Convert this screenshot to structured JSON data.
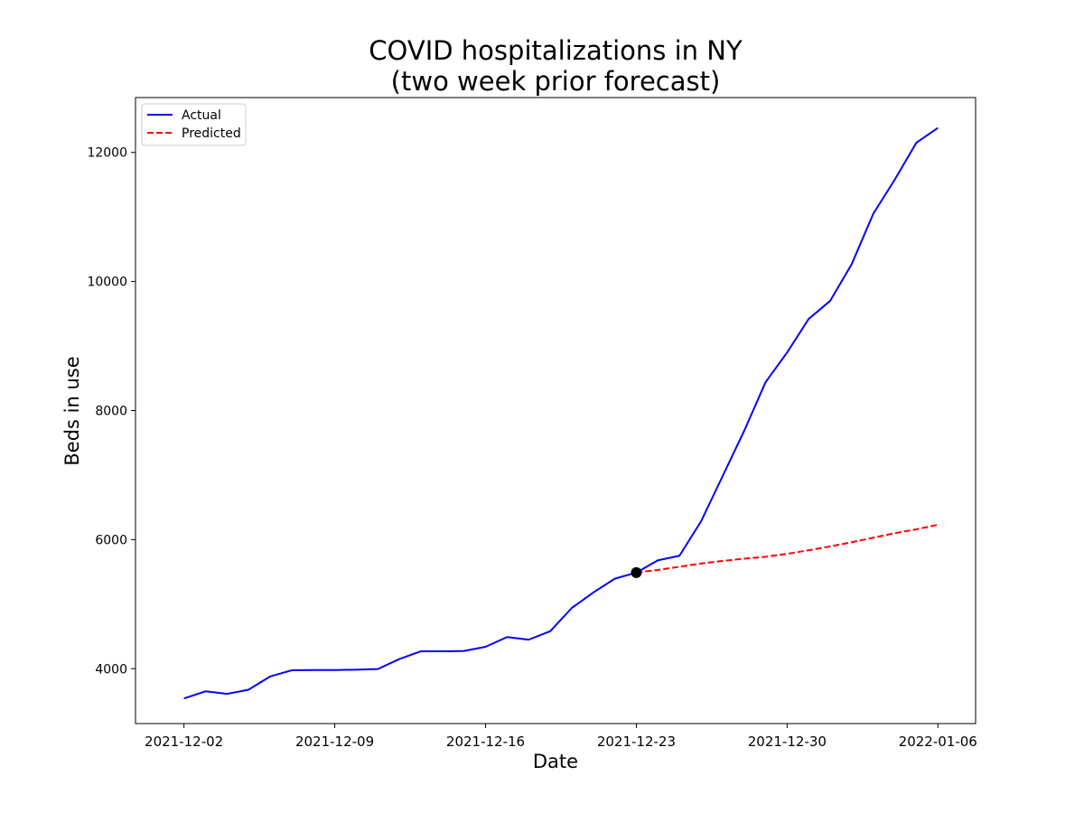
{
  "chart_data": {
    "type": "line",
    "title_line1": "COVID hospitalizations in NY",
    "title_line2": "(two week prior forecast)",
    "xlabel": "Date",
    "ylabel": "Beds in use",
    "x_ticks": [
      "2021-12-02",
      "2021-12-09",
      "2021-12-16",
      "2021-12-23",
      "2021-12-30",
      "2022-01-06"
    ],
    "y_ticks": [
      4000,
      6000,
      8000,
      10000,
      12000
    ],
    "xlim": [
      "2021-12-00.25",
      "2022-01-07.75"
    ],
    "ylim": [
      3150,
      12850
    ],
    "grid": false,
    "legend_position": "top-left",
    "series": [
      {
        "name": "Actual",
        "color": "#0000ff",
        "style": "solid",
        "points": [
          [
            "2021-12-02",
            3540
          ],
          [
            "2021-12-03",
            3650
          ],
          [
            "2021-12-04",
            3610
          ],
          [
            "2021-12-05",
            3675
          ],
          [
            "2021-12-06",
            3880
          ],
          [
            "2021-12-07",
            3975
          ],
          [
            "2021-12-08",
            3980
          ],
          [
            "2021-12-09",
            3980
          ],
          [
            "2021-12-10",
            3985
          ],
          [
            "2021-12-11",
            3995
          ],
          [
            "2021-12-12",
            4150
          ],
          [
            "2021-12-13",
            4270
          ],
          [
            "2021-12-14",
            4270
          ],
          [
            "2021-12-15",
            4275
          ],
          [
            "2021-12-16",
            4340
          ],
          [
            "2021-12-17",
            4490
          ],
          [
            "2021-12-18",
            4450
          ],
          [
            "2021-12-19",
            4580
          ],
          [
            "2021-12-20",
            4940
          ],
          [
            "2021-12-21",
            5180
          ],
          [
            "2021-12-22",
            5395
          ],
          [
            "2021-12-23",
            5490
          ],
          [
            "2021-12-24",
            5680
          ],
          [
            "2021-12-25",
            5750
          ],
          [
            "2021-12-26",
            6280
          ],
          [
            "2021-12-27",
            6980
          ],
          [
            "2021-12-28",
            7680
          ],
          [
            "2021-12-29",
            8440
          ],
          [
            "2021-12-30",
            8900
          ],
          [
            "2021-12-31",
            9420
          ],
          [
            "2022-01-01",
            9700
          ],
          [
            "2022-01-02",
            10270
          ],
          [
            "2022-01-03",
            11050
          ],
          [
            "2022-01-04",
            11580
          ],
          [
            "2022-01-05",
            12150
          ],
          [
            "2022-01-06",
            12380
          ]
        ]
      },
      {
        "name": "Predicted",
        "color": "#ff0000",
        "style": "dashed",
        "points": [
          [
            "2021-12-23",
            5490
          ],
          [
            "2021-12-24",
            5530
          ],
          [
            "2021-12-25",
            5580
          ],
          [
            "2021-12-26",
            5630
          ],
          [
            "2021-12-27",
            5670
          ],
          [
            "2021-12-28",
            5705
          ],
          [
            "2021-12-29",
            5735
          ],
          [
            "2021-12-30",
            5780
          ],
          [
            "2021-12-31",
            5835
          ],
          [
            "2022-01-01",
            5895
          ],
          [
            "2022-01-02",
            5960
          ],
          [
            "2022-01-03",
            6030
          ],
          [
            "2022-01-04",
            6100
          ],
          [
            "2022-01-05",
            6160
          ],
          [
            "2022-01-06",
            6230
          ]
        ]
      }
    ],
    "marker": {
      "x": "2021-12-23",
      "y": 5490,
      "color": "#000000"
    }
  }
}
